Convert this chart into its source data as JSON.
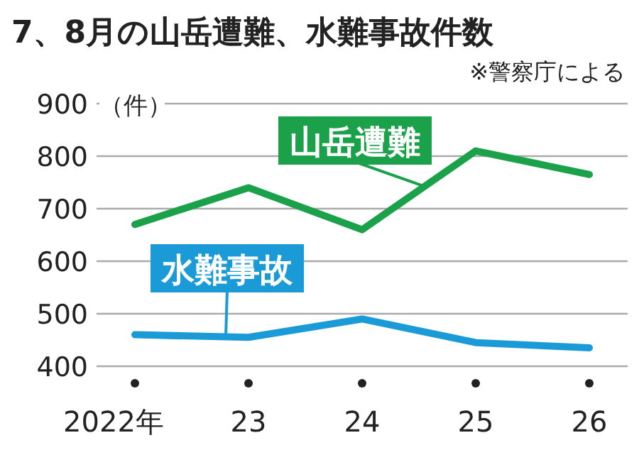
{
  "chart_data": {
    "type": "line",
    "title": "7、8月の山岳遭難、水難事故件数",
    "subtitle": "※警察庁による",
    "ylabel": "（件）",
    "categories": [
      "2022年",
      "23",
      "24",
      "25",
      "26"
    ],
    "series": [
      {
        "name": "山岳遭難",
        "color": "#1aa14a",
        "values": [
          670,
          740,
          660,
          810,
          765
        ]
      },
      {
        "name": "水難事故",
        "color": "#1a9ad6",
        "values": [
          460,
          455,
          490,
          445,
          435
        ]
      }
    ],
    "ylim": [
      400,
      900
    ],
    "yticks": [
      400,
      500,
      600,
      700,
      800,
      900
    ],
    "grid": "y",
    "legend": false,
    "marker": "none",
    "line_style": "solid"
  }
}
